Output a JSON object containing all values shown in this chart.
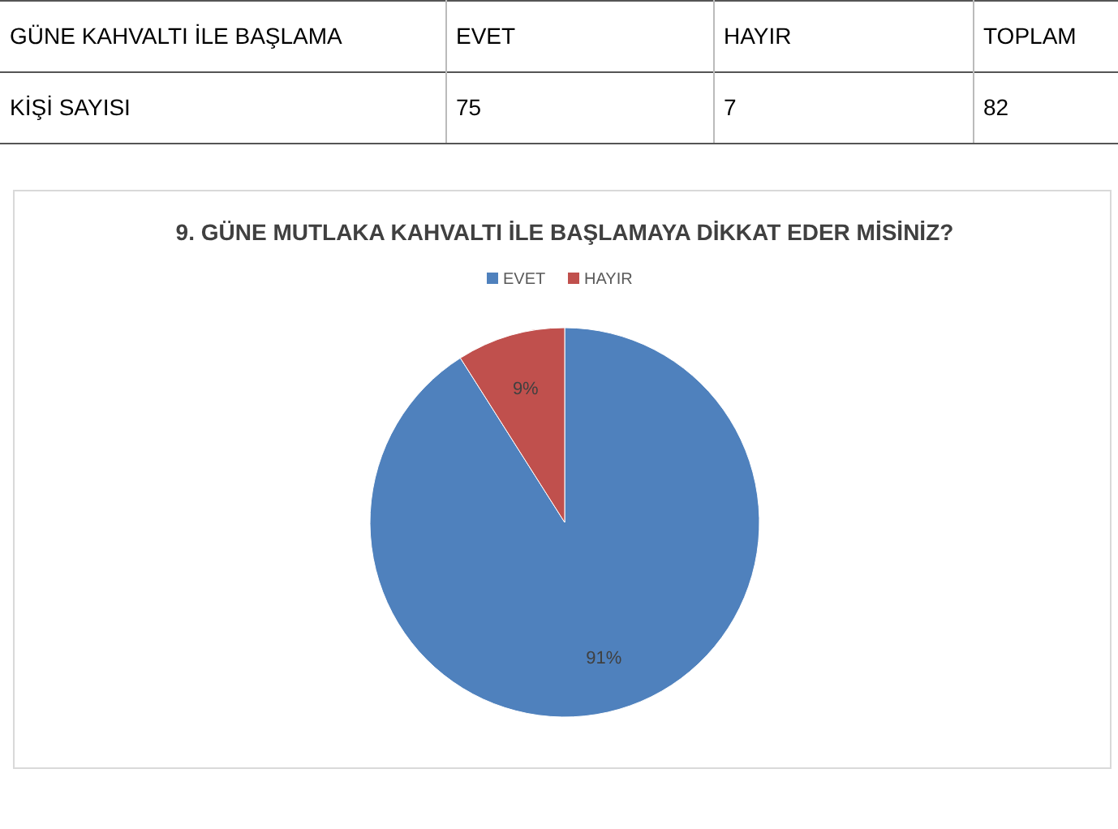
{
  "chart_data": [
    {
      "type": "other",
      "annotations": [
        "GÜNE KAHVALTI İLE BAŞLAMA",
        "EVET",
        "HAYIR",
        "TOPLAM",
        "KİŞİ SAYISI",
        "75",
        "7",
        "82"
      ]
    },
    {
      "type": "pie",
      "title": "9. GÜNE MUTLAKA KAHVALTI İLE BAŞLAMAYA DİKKAT EDER MİSİNİZ?",
      "categories": [
        "EVET",
        "HAYIR"
      ],
      "values": [
        91,
        9
      ],
      "colors": [
        "#4f81bd",
        "#c0504d"
      ],
      "value_labels": [
        "91%",
        "9%"
      ],
      "legend": "top"
    }
  ]
}
